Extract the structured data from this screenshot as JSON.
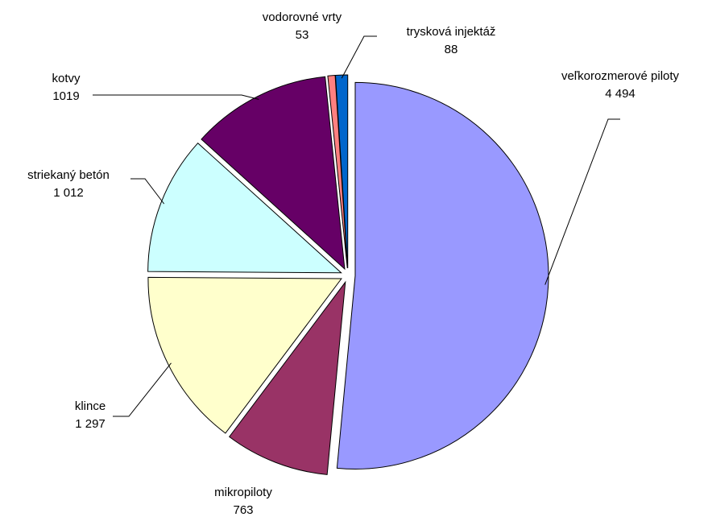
{
  "chart_data": {
    "type": "pie",
    "categories": [
      "veľkorozmerové piloty",
      "mikropiloty",
      "klince",
      "striekaný betón",
      "kotvy",
      "vodorovné vrty",
      "trysková injektáž"
    ],
    "values": [
      4494,
      763,
      1297,
      1012,
      1019,
      53,
      88
    ],
    "value_labels": [
      "4 494",
      "763",
      "1 297",
      "1 012",
      "1019",
      "53",
      "88"
    ],
    "colors": [
      "#9999ff",
      "#993366",
      "#ffffcc",
      "#ccffff",
      "#660066",
      "#ff8080",
      "#0066cc"
    ]
  }
}
